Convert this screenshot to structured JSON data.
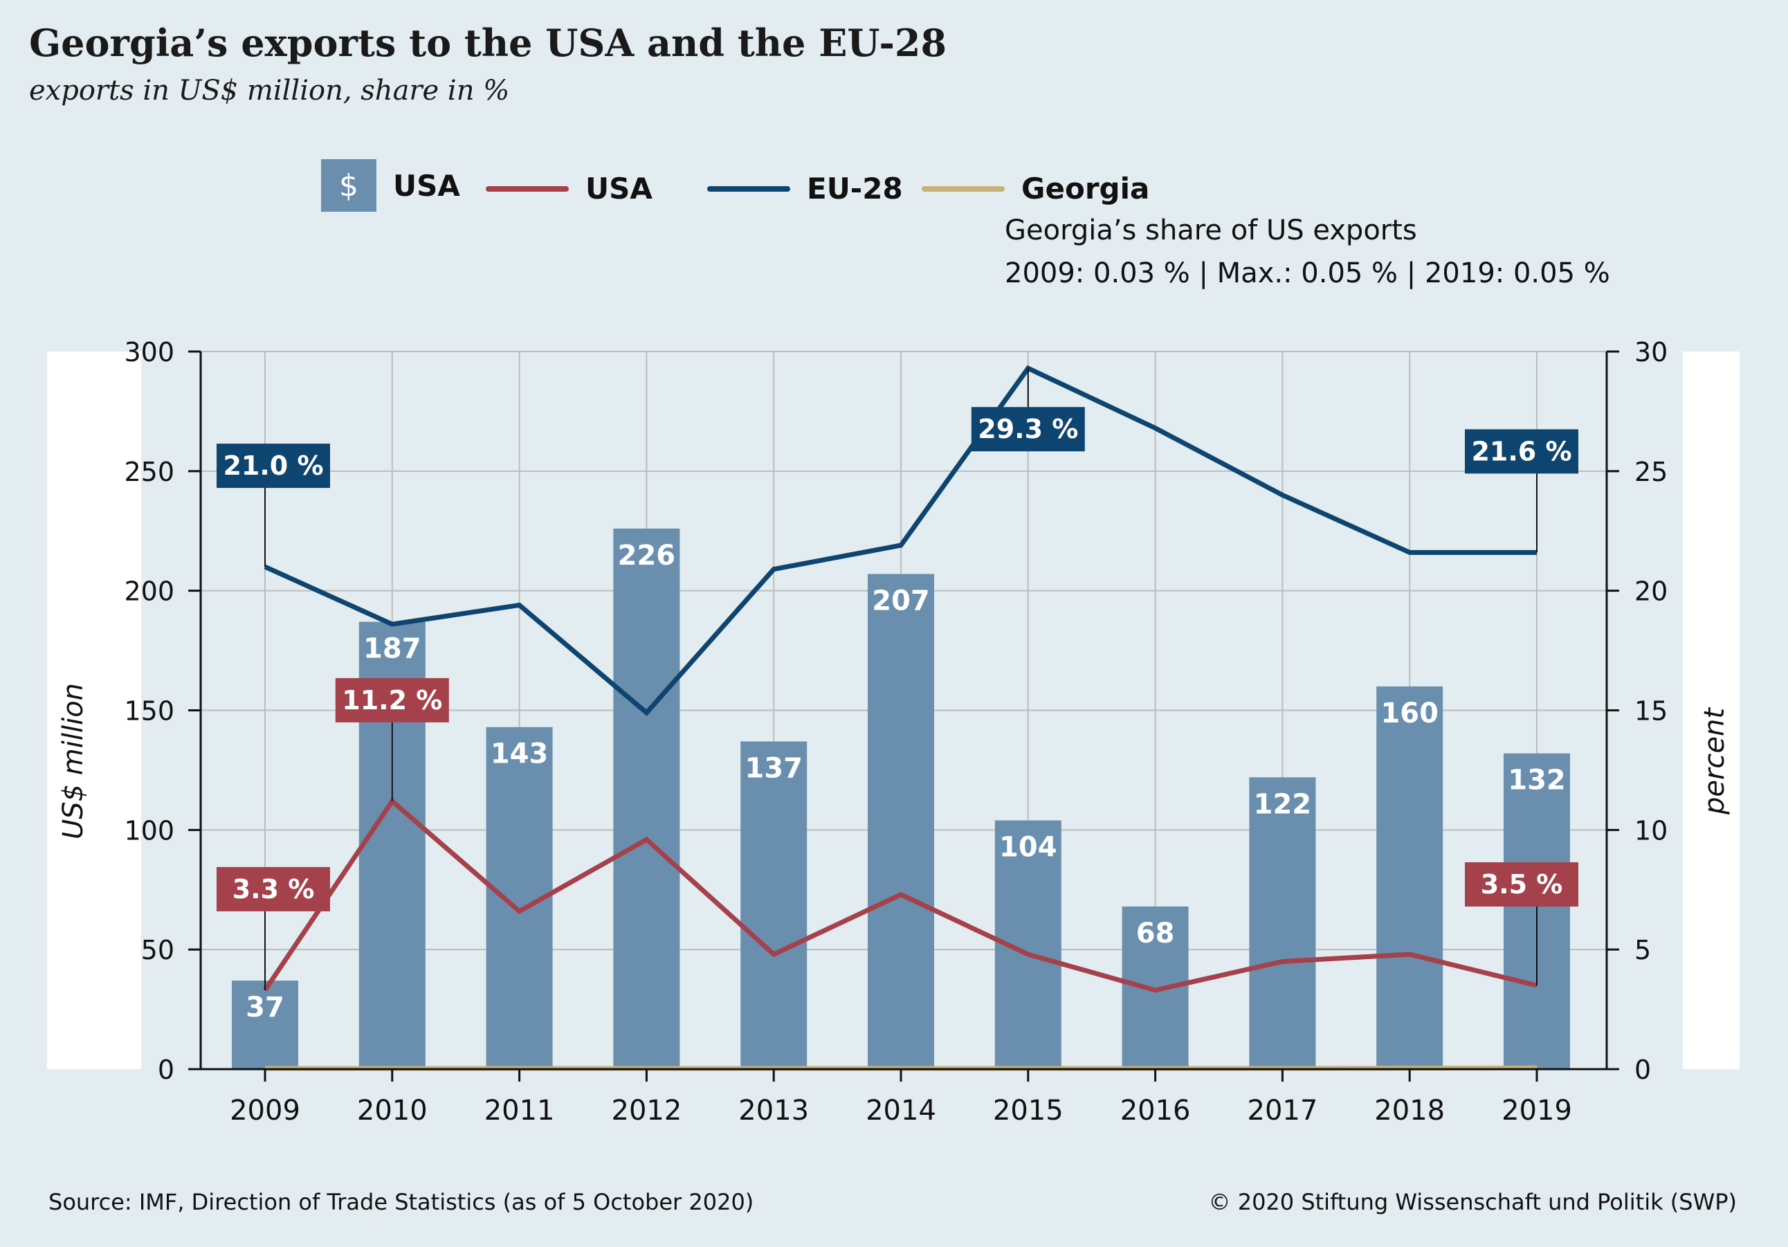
{
  "title": "Georgia’s exports to the USA and the EU-28",
  "subtitle": "exports in US$ million, share in %",
  "legend": {
    "bar_symbol": "$",
    "bar_label": "USA",
    "usa_line_label": "USA",
    "eu_line_label": "EU-28",
    "georgia_line_label": "Georgia",
    "georgia_note_line1": "Georgia’s share of US exports",
    "georgia_note_line2": "2009: 0.03 % | Max.: 0.05 % | 2019: 0.05 %"
  },
  "footer": {
    "source": "Source: IMF, Direction of Trade Statistics (as of 5 October 2020)",
    "copyright": "© 2020 Stiftung Wissenschaft und Politik (SWP)"
  },
  "colors": {
    "bar": "#6a8fae",
    "usa_line": "#a5414b",
    "eu_line": "#0e4570",
    "georgia_line": "#c8b27a",
    "grid": "#bcbcbc",
    "background": "#e3ecf0"
  },
  "chart_data": {
    "type": "bar",
    "categories": [
      "2009",
      "2010",
      "2011",
      "2012",
      "2013",
      "2014",
      "2015",
      "2016",
      "2017",
      "2018",
      "2019"
    ],
    "ylabel_left": "US$ million",
    "ylabel_right": "percent",
    "ylim_left": [
      0,
      300
    ],
    "ylim_right": [
      0,
      30
    ],
    "yticks_left": [
      0,
      50,
      100,
      150,
      200,
      250,
      300
    ],
    "yticks_right": [
      0,
      5,
      10,
      15,
      20,
      25,
      30
    ],
    "grid": true,
    "bars": {
      "name": "USA",
      "axis": "left",
      "values": [
        37,
        187,
        143,
        226,
        137,
        207,
        104,
        68,
        122,
        160,
        132
      ]
    },
    "series": [
      {
        "name": "USA",
        "axis": "right",
        "values": [
          3.3,
          11.2,
          6.6,
          9.6,
          4.8,
          7.3,
          4.8,
          3.3,
          4.5,
          4.8,
          3.5
        ]
      },
      {
        "name": "EU-28",
        "axis": "right",
        "values": [
          21.0,
          18.6,
          19.4,
          14.9,
          20.9,
          21.9,
          29.3,
          26.8,
          24.0,
          21.6,
          21.6
        ]
      },
      {
        "name": "Georgia",
        "axis": "right",
        "values": [
          0.03,
          0.03,
          0.03,
          0.03,
          0.03,
          0.03,
          0.03,
          0.03,
          0.03,
          0.04,
          0.05
        ]
      }
    ],
    "annotations": [
      {
        "series": "EU-28",
        "category": "2009",
        "text": "21.0 %",
        "pos": "above"
      },
      {
        "series": "EU-28",
        "category": "2015",
        "text": "29.3 %",
        "pos": "below"
      },
      {
        "series": "EU-28",
        "category": "2019",
        "text": "21.6 %",
        "pos": "above"
      },
      {
        "series": "USA",
        "category": "2009",
        "text": "3.3 %",
        "pos": "above"
      },
      {
        "series": "USA",
        "category": "2010",
        "text": "11.2 %",
        "pos": "above"
      },
      {
        "series": "USA",
        "category": "2019",
        "text": "3.5 %",
        "pos": "above"
      }
    ]
  }
}
